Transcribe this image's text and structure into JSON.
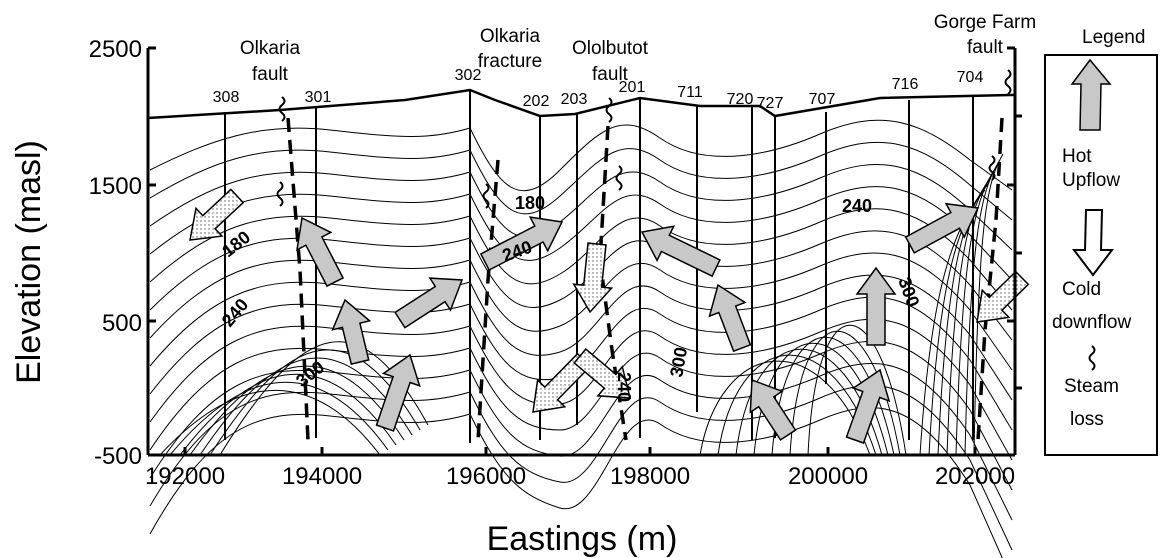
{
  "title": "",
  "axes": {
    "xlabel": "Eastings (m)",
    "ylabel": "Elevation (masl)",
    "xticks": [
      "192000",
      "194000",
      "196000",
      "198000",
      "200000",
      "202000"
    ],
    "yticks": [
      "2500",
      "1500",
      "500",
      "-500"
    ],
    "xlim": [
      192000,
      202000
    ],
    "ylim": [
      -500,
      2500
    ]
  },
  "faults": [
    {
      "label": "Olkaria fault",
      "lines": [
        "Olkaria",
        "fault"
      ]
    },
    {
      "label": "Olkaria fracture",
      "lines": [
        "Olkaria",
        "fracture"
      ]
    },
    {
      "label": "Ololbutot fault",
      "lines": [
        "Ololbutot",
        "fault"
      ]
    },
    {
      "label": "Gorge Farm fault",
      "lines": [
        "Gorge Farm",
        "fault"
      ]
    }
  ],
  "wells": [
    "308",
    "301",
    "302",
    "202",
    "203",
    "201",
    "711",
    "720",
    "727",
    "707",
    "716",
    "704"
  ],
  "isotherm_labels": [
    "180",
    "240",
    "300",
    "180",
    "240",
    "240",
    "300",
    "240",
    "300"
  ],
  "legend": {
    "title": "Legend",
    "items": [
      {
        "lines": [
          "Hot",
          "Upflow"
        ],
        "icon": "hot-upflow-arrow"
      },
      {
        "lines": [
          "Cold",
          "downflow"
        ],
        "icon": "cold-downflow-arrow"
      },
      {
        "lines": [
          "Steam",
          "loss"
        ],
        "icon": "steam-loss-squiggle"
      }
    ]
  },
  "colors": {
    "hot_arrow": "#c8c8c8",
    "cold_arrow": "#ffffff",
    "line": "#000000"
  }
}
